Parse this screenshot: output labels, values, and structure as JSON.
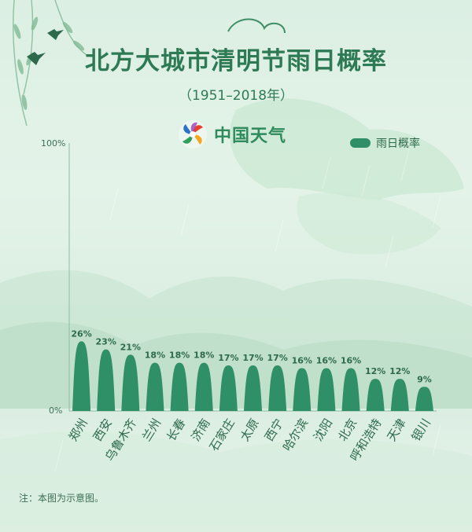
{
  "header": {
    "title": "北方大城市清明节雨日概率",
    "subtitle": "（1951–2018年）",
    "brand": "中国天气"
  },
  "legend": {
    "label": "雨日概率",
    "color": "#2f8f66"
  },
  "note": "注：本图为示意图。",
  "chart_data": {
    "type": "bar",
    "title": "北方大城市清明节雨日概率",
    "subtitle": "（1951–2018年）",
    "categories": [
      "郑州",
      "西安",
      "乌鲁木齐",
      "兰州",
      "长春",
      "济南",
      "石家庄",
      "太原",
      "西宁",
      "哈尔滨",
      "沈阳",
      "北京",
      "呼和浩特",
      "天津",
      "银川"
    ],
    "series": [
      {
        "name": "雨日概率",
        "values": [
          26,
          23,
          21,
          18,
          18,
          18,
          17,
          17,
          17,
          16,
          16,
          16,
          12,
          12,
          9
        ]
      }
    ],
    "data_labels": [
      "26%",
      "23%",
      "21%",
      "18%",
      "18%",
      "18%",
      "17%",
      "17%",
      "17%",
      "16%",
      "16%",
      "16%",
      "12%",
      "12%",
      "9%"
    ],
    "ylim": [
      0,
      100
    ],
    "yticks": [
      "0%",
      "100%"
    ],
    "legend_position": "top-right",
    "grid": false,
    "bar_color": "#2f8f66"
  }
}
